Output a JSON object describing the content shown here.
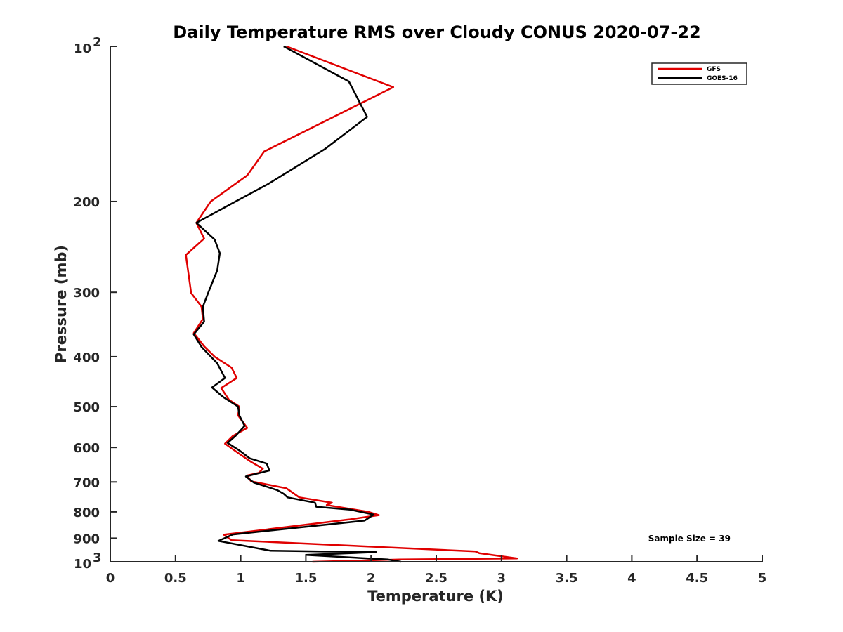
{
  "chart_data": {
    "type": "line",
    "title": "Daily Temperature RMS over Cloudy CONUS 2020-07-22",
    "xlabel": "Temperature (K)",
    "ylabel": "Pressure (mb)",
    "xlim": [
      0,
      5
    ],
    "ylim": [
      100,
      1000
    ],
    "yscale": "log",
    "y_reversed": true,
    "xticks": [
      {
        "value": 0,
        "label": "0"
      },
      {
        "value": 0.5,
        "label": "0.5"
      },
      {
        "value": 1,
        "label": "1"
      },
      {
        "value": 1.5,
        "label": "1.5"
      },
      {
        "value": 2,
        "label": "2"
      },
      {
        "value": 2.5,
        "label": "2.5"
      },
      {
        "value": 3,
        "label": "3"
      },
      {
        "value": 3.5,
        "label": "3.5"
      },
      {
        "value": 4,
        "label": "4"
      },
      {
        "value": 4.5,
        "label": "4.5"
      },
      {
        "value": 5,
        "label": "5"
      }
    ],
    "yticks": [
      {
        "value": 100,
        "base": "10",
        "exp": "2"
      },
      {
        "value": 200,
        "label": "200"
      },
      {
        "value": 300,
        "label": "300"
      },
      {
        "value": 400,
        "label": "400"
      },
      {
        "value": 500,
        "label": "500"
      },
      {
        "value": 600,
        "label": "600"
      },
      {
        "value": 700,
        "label": "700"
      },
      {
        "value": 800,
        "label": "800"
      },
      {
        "value": 900,
        "label": "900"
      },
      {
        "value": 1000,
        "base": "10",
        "exp": "3"
      }
    ],
    "grid": false,
    "legend_position": "top-right",
    "series": [
      {
        "name": "GFS",
        "color": "#e00000",
        "points": [
          [
            1.35,
            100
          ],
          [
            2.17,
            120
          ],
          [
            1.18,
            160
          ],
          [
            1.05,
            178
          ],
          [
            0.77,
            200
          ],
          [
            0.66,
            220
          ],
          [
            0.72,
            236
          ],
          [
            0.58,
            254
          ],
          [
            0.62,
            301
          ],
          [
            0.7,
            320
          ],
          [
            0.71,
            338
          ],
          [
            0.64,
            360
          ],
          [
            0.72,
            382
          ],
          [
            0.8,
            400
          ],
          [
            0.93,
            420
          ],
          [
            0.97,
            440
          ],
          [
            0.85,
            460
          ],
          [
            0.91,
            485
          ],
          [
            0.99,
            500
          ],
          [
            0.98,
            520
          ],
          [
            1.05,
            550
          ],
          [
            0.94,
            570
          ],
          [
            0.88,
            590
          ],
          [
            0.98,
            615
          ],
          [
            1.08,
            640
          ],
          [
            1.17,
            660
          ],
          [
            1.14,
            672
          ],
          [
            1.05,
            680
          ],
          [
            1.08,
            698
          ],
          [
            1.35,
            720
          ],
          [
            1.45,
            750
          ],
          [
            1.7,
            768
          ],
          [
            1.66,
            776
          ],
          [
            1.98,
            800
          ],
          [
            2.06,
            812
          ],
          [
            1.83,
            828
          ],
          [
            0.87,
            886
          ],
          [
            0.93,
            908
          ],
          [
            2.8,
            955
          ],
          [
            2.83,
            962
          ],
          [
            3.12,
            985
          ],
          [
            2.22,
            990
          ],
          [
            1.55,
            1000
          ]
        ]
      },
      {
        "name": "GOES-16",
        "color": "#000000",
        "points": [
          [
            1.33,
            100
          ],
          [
            1.83,
            117
          ],
          [
            1.97,
            137
          ],
          [
            1.65,
            158
          ],
          [
            1.21,
            185
          ],
          [
            0.96,
            200
          ],
          [
            0.66,
            220
          ],
          [
            0.8,
            237
          ],
          [
            0.84,
            252
          ],
          [
            0.82,
            272
          ],
          [
            0.75,
            301
          ],
          [
            0.71,
            320
          ],
          [
            0.72,
            342
          ],
          [
            0.64,
            362
          ],
          [
            0.7,
            383
          ],
          [
            0.82,
            412
          ],
          [
            0.88,
            440
          ],
          [
            0.78,
            459
          ],
          [
            0.87,
            480
          ],
          [
            0.98,
            500
          ],
          [
            0.99,
            520
          ],
          [
            1.03,
            545
          ],
          [
            0.96,
            570
          ],
          [
            0.9,
            588
          ],
          [
            0.99,
            608
          ],
          [
            1.07,
            630
          ],
          [
            1.2,
            645
          ],
          [
            1.22,
            665
          ],
          [
            1.04,
            683
          ],
          [
            1.1,
            702
          ],
          [
            1.28,
            726
          ],
          [
            1.33,
            738
          ],
          [
            1.36,
            750
          ],
          [
            1.57,
            768
          ],
          [
            1.58,
            782
          ],
          [
            1.84,
            792
          ],
          [
            2.02,
            810
          ],
          [
            1.95,
            832
          ],
          [
            0.94,
            885
          ],
          [
            0.83,
            911
          ],
          [
            1.23,
            952
          ],
          [
            2.04,
            958
          ],
          [
            1.5,
            970
          ],
          [
            2.13,
            990
          ],
          [
            2.23,
            1000
          ]
        ]
      }
    ],
    "annotations": [
      "Sample Size = 39"
    ]
  }
}
